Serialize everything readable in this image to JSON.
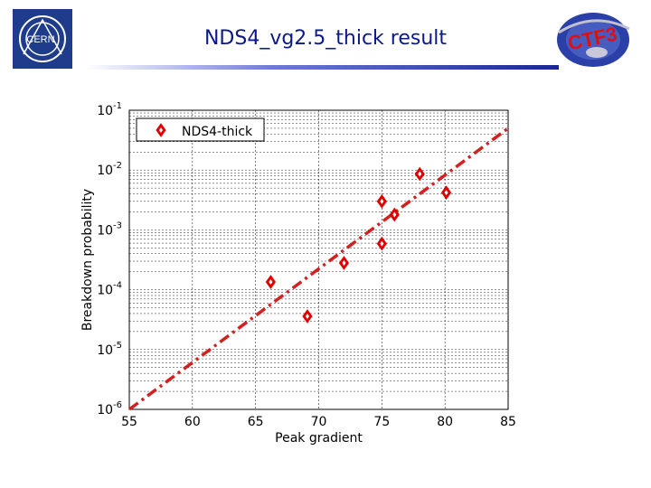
{
  "slide": {
    "title": "NDS4_vg2.5_thick result",
    "cern_logo_text": "CERN",
    "ctf_logo_text": "CTF3"
  },
  "colors": {
    "title": "#0a1a8c",
    "marker": "#e00000",
    "fit_line": "#d42020"
  },
  "chart_data": {
    "type": "scatter",
    "xlabel": "Peak gradient",
    "ylabel": "Breakdown probability",
    "xlim": [
      55,
      85
    ],
    "ylim": [
      1e-06,
      0.1
    ],
    "yscale": "log",
    "grid": true,
    "legend": "top-left",
    "xticks": [
      55,
      60,
      65,
      70,
      75,
      80,
      85
    ],
    "yticks": [
      {
        "value": 1e-06,
        "base": "10",
        "exp": "-6"
      },
      {
        "value": 1e-05,
        "base": "10",
        "exp": "-5"
      },
      {
        "value": 0.0001,
        "base": "10",
        "exp": "-4"
      },
      {
        "value": 0.001,
        "base": "10",
        "exp": "-3"
      },
      {
        "value": 0.01,
        "base": "10",
        "exp": "-2"
      },
      {
        "value": 0.1,
        "base": "10",
        "exp": "-1"
      }
    ],
    "series": [
      {
        "name": "NDS4-thick",
        "marker": "diamond",
        "points": [
          {
            "x": 66.2,
            "y": 0.000135
          },
          {
            "x": 69.1,
            "y": 3.6e-05
          },
          {
            "x": 72.0,
            "y": 0.00028
          },
          {
            "x": 75.0,
            "y": 0.003
          },
          {
            "x": 75.0,
            "y": 0.00059
          },
          {
            "x": 76.0,
            "y": 0.0018
          },
          {
            "x": 78.0,
            "y": 0.0086
          },
          {
            "x": 80.1,
            "y": 0.0042
          }
        ]
      }
    ],
    "fit": {
      "style": "dash-dot",
      "points": [
        {
          "x": 55,
          "y": 1e-06
        },
        {
          "x": 85,
          "y": 0.05
        }
      ]
    }
  }
}
